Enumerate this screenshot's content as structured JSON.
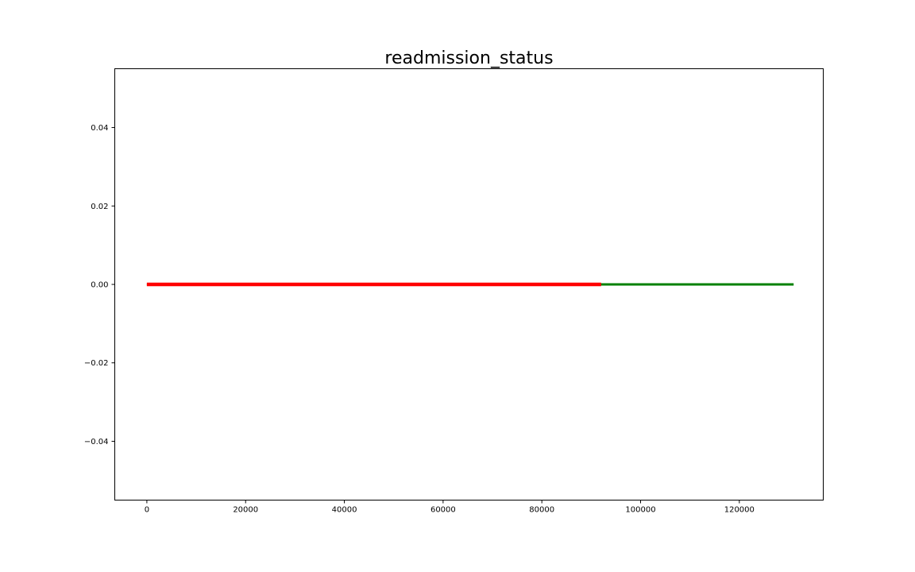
{
  "chart_data": {
    "type": "line",
    "title": "readmission_status",
    "xlabel": "",
    "ylabel": "",
    "xlim": [
      -6500,
      137000
    ],
    "ylim": [
      -0.055,
      0.055
    ],
    "x_ticks": [
      0,
      20000,
      40000,
      60000,
      80000,
      100000,
      120000
    ],
    "x_tick_labels": [
      "0",
      "20000",
      "40000",
      "60000",
      "80000",
      "100000",
      "120000"
    ],
    "y_ticks": [
      0.04,
      0.02,
      0.0,
      -0.02,
      -0.04
    ],
    "y_tick_labels": [
      "0.04",
      "0.02",
      "0.00",
      "−0.02",
      "−0.04"
    ],
    "grid": false,
    "legend": "none",
    "series": [
      {
        "color": "#008000",
        "x": [
          0,
          131000
        ],
        "y": [
          0.0,
          0.0
        ]
      },
      {
        "color": "#ff0000",
        "x": [
          0,
          92000
        ],
        "y": [
          0.0,
          0.0
        ]
      }
    ]
  }
}
